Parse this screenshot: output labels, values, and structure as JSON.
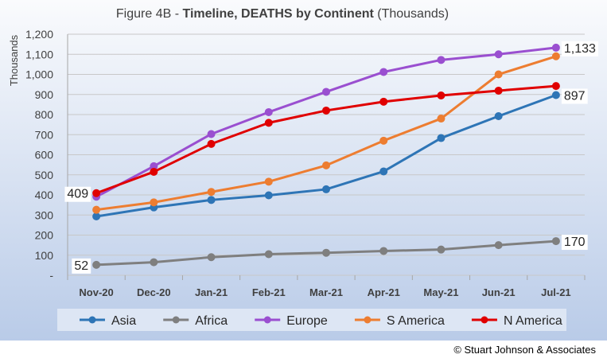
{
  "title": {
    "prefix": "Figure 4B - ",
    "bold": "Timeline, DEATHS by Continent",
    "suffix": " (Thousands)"
  },
  "copyright": "© Stuart Johnson & Associates",
  "colors": {
    "background_top": "#fafbfd",
    "background_bottom": "#b9cbe8",
    "legend_bg": "#dde6f4",
    "grid": "#c8c8c8"
  },
  "chart_data": {
    "type": "line",
    "title": "Figure 4B - Timeline, DEATHS by Continent (Thousands)",
    "xlabel": "",
    "ylabel": "Thousands",
    "ylim": [
      0,
      1200
    ],
    "y_ticks": [
      0,
      100,
      200,
      300,
      400,
      500,
      600,
      700,
      800,
      900,
      1000,
      1100,
      1200
    ],
    "y_tick_labels": [
      "-",
      "100",
      "200",
      "300",
      "400",
      "500",
      "600",
      "700",
      "800",
      "900",
      "1,000",
      "1,100",
      "1,200"
    ],
    "categories": [
      "Nov-20",
      "Dec-20",
      "Jan-21",
      "Feb-21",
      "Mar-21",
      "Apr-21",
      "May-21",
      "Jun-21",
      "Jul-21"
    ],
    "grid": "horizontal",
    "legend_position": "bottom",
    "series": [
      {
        "name": "Asia",
        "color": "#2e75b6",
        "values": [
          293,
          338,
          375,
          398,
          428,
          517,
          683,
          792,
          897
        ]
      },
      {
        "name": "Africa",
        "color": "#7f7f7f",
        "values": [
          52,
          65,
          90,
          105,
          112,
          121,
          128,
          150,
          170
        ]
      },
      {
        "name": "Europe",
        "color": "#9a4fd0",
        "values": [
          391,
          543,
          703,
          812,
          913,
          1012,
          1072,
          1100,
          1133
        ]
      },
      {
        "name": "S America",
        "color": "#ed7d31",
        "values": [
          326,
          363,
          415,
          466,
          547,
          670,
          780,
          1000,
          1090
        ]
      },
      {
        "name": "N America",
        "color": "#e00000",
        "values": [
          409,
          515,
          654,
          759,
          820,
          864,
          895,
          919,
          942
        ]
      }
    ],
    "data_labels": [
      {
        "series": "N America",
        "index": 0,
        "text": "409",
        "side": "left"
      },
      {
        "series": "Africa",
        "index": 0,
        "text": "52",
        "side": "left"
      },
      {
        "series": "Europe",
        "index": 8,
        "text": "1,133",
        "side": "right"
      },
      {
        "series": "Asia",
        "index": 8,
        "text": "897",
        "side": "right"
      },
      {
        "series": "Africa",
        "index": 8,
        "text": "170",
        "side": "right"
      }
    ]
  }
}
